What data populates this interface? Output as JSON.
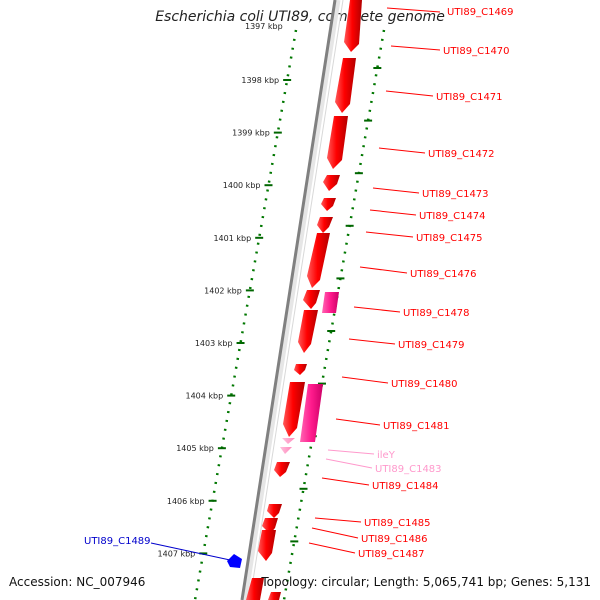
{
  "title": "Escherichia coli UTI89, complete genome",
  "footer": {
    "accession": "Accession: NC_007946",
    "summary": "Topology: circular; Length: 5,065,741 bp; Genes: 5,131"
  },
  "colors": {
    "forward_gene": "#ff0000",
    "reverse_gene": "#0000ff",
    "rna_gene": "#ff99cc",
    "misc_feature": "#ff1493",
    "tick": "#006600",
    "backbone": "#808080"
  },
  "scale": {
    "partial_label": "1397 kbp",
    "ticks": [
      "1398 kbp",
      "1399 kbp",
      "1400 kbp",
      "1401 kbp",
      "1402 kbp",
      "1403 kbp",
      "1404 kbp",
      "1405 kbp",
      "1406 kbp",
      "1407 kbp"
    ]
  },
  "genes": [
    {
      "label": "UTI89_C1469",
      "color": "#ff0000"
    },
    {
      "label": "UTI89_C1470",
      "color": "#ff0000"
    },
    {
      "label": "UTI89_C1471",
      "color": "#ff0000"
    },
    {
      "label": "UTI89_C1472",
      "color": "#ff0000"
    },
    {
      "label": "UTI89_C1473",
      "color": "#ff0000"
    },
    {
      "label": "UTI89_C1474",
      "color": "#ff0000"
    },
    {
      "label": "UTI89_C1475",
      "color": "#ff0000"
    },
    {
      "label": "UTI89_C1476",
      "color": "#ff0000"
    },
    {
      "label": "UTI89_C1478",
      "color": "#ff0000"
    },
    {
      "label": "UTI89_C1479",
      "color": "#ff0000"
    },
    {
      "label": "UTI89_C1480",
      "color": "#ff0000"
    },
    {
      "label": "UTI89_C1481",
      "color": "#ff0000"
    },
    {
      "label": "ileY",
      "color": "#ff99cc"
    },
    {
      "label": "UTI89_C1483",
      "color": "#ff99cc"
    },
    {
      "label": "UTI89_C1484",
      "color": "#ff0000"
    },
    {
      "label": "UTI89_C1485",
      "color": "#ff0000"
    },
    {
      "label": "UTI89_C1486",
      "color": "#ff0000"
    },
    {
      "label": "UTI89_C1487",
      "color": "#ff0000"
    },
    {
      "label": "UTI89_C1489",
      "color": "#0000cc"
    }
  ]
}
